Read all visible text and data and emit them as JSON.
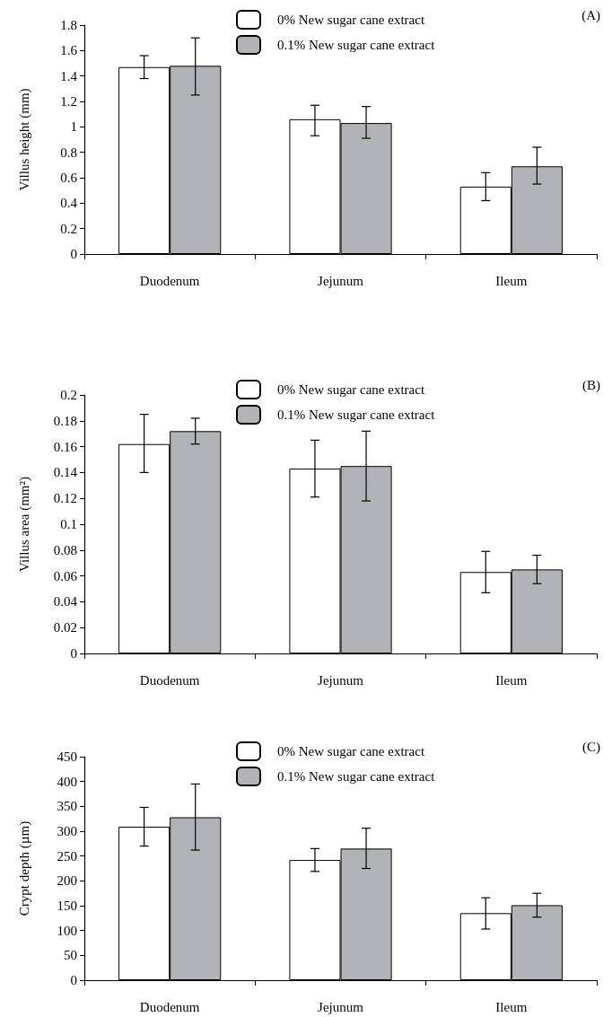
{
  "chart_data": [
    {
      "type": "bar",
      "title": "(A)",
      "ylabel": "Villus height (mm)",
      "categories": [
        "Duodenum",
        "Jejunum",
        "Ileum"
      ],
      "series": [
        {
          "name": "0% New sugar cane extract",
          "color": "#ffffff",
          "values": [
            1.47,
            1.06,
            0.53
          ],
          "errors": [
            [
              1.38,
              1.56
            ],
            [
              0.93,
              1.17
            ],
            [
              0.42,
              0.64
            ]
          ]
        },
        {
          "name": "0.1% New sugar cane extract",
          "color": "#b2b3b7",
          "values": [
            1.48,
            1.03,
            0.69
          ],
          "errors": [
            [
              1.25,
              1.7
            ],
            [
              0.91,
              1.16
            ],
            [
              0.55,
              0.84
            ]
          ]
        }
      ],
      "ylim": [
        0,
        1.8
      ],
      "yticks": [
        0,
        0.2,
        0.4,
        0.6,
        0.8,
        1,
        1.2,
        1.4,
        1.6,
        1.8
      ],
      "grid": false,
      "legend": "top"
    },
    {
      "type": "bar",
      "title": "(B)",
      "ylabel": "Villus area (mm²)",
      "categories": [
        "Duodenum",
        "Jejunum",
        "Ileum"
      ],
      "series": [
        {
          "name": "0% New sugar cane extract",
          "color": "#ffffff",
          "values": [
            0.162,
            0.143,
            0.063
          ],
          "errors": [
            [
              0.14,
              0.185
            ],
            [
              0.121,
              0.165
            ],
            [
              0.047,
              0.079
            ]
          ]
        },
        {
          "name": "0.1% New sugar cane extract",
          "color": "#b2b3b7",
          "values": [
            0.172,
            0.145,
            0.065
          ],
          "errors": [
            [
              0.162,
              0.182
            ],
            [
              0.118,
              0.172
            ],
            [
              0.054,
              0.076
            ]
          ]
        }
      ],
      "ylim": [
        0,
        0.2
      ],
      "yticks": [
        0,
        0.02,
        0.04,
        0.06,
        0.08,
        0.1,
        0.12,
        0.14,
        0.16,
        0.18,
        0.2
      ],
      "grid": false,
      "legend": "top"
    },
    {
      "type": "bar",
      "title": "(C)",
      "ylabel": "Crypt depth (µm)",
      "categories": [
        "Duodenum",
        "Jejunum",
        "Ileum"
      ],
      "series": [
        {
          "name": "0% New sugar cane extract",
          "color": "#ffffff",
          "values": [
            309,
            242,
            135
          ],
          "errors": [
            [
              270,
              348
            ],
            [
              219,
              265
            ],
            [
              103,
              166
            ]
          ]
        },
        {
          "name": "0.1% New sugar cane extract",
          "color": "#b2b3b7",
          "values": [
            328,
            265,
            151
          ],
          "errors": [
            [
              262,
              395
            ],
            [
              225,
              306
            ],
            [
              127,
              175
            ]
          ]
        }
      ],
      "ylim": [
        0,
        450
      ],
      "yticks": [
        0,
        50,
        100,
        150,
        200,
        250,
        300,
        350,
        400,
        450
      ],
      "grid": false,
      "legend": "top"
    }
  ]
}
